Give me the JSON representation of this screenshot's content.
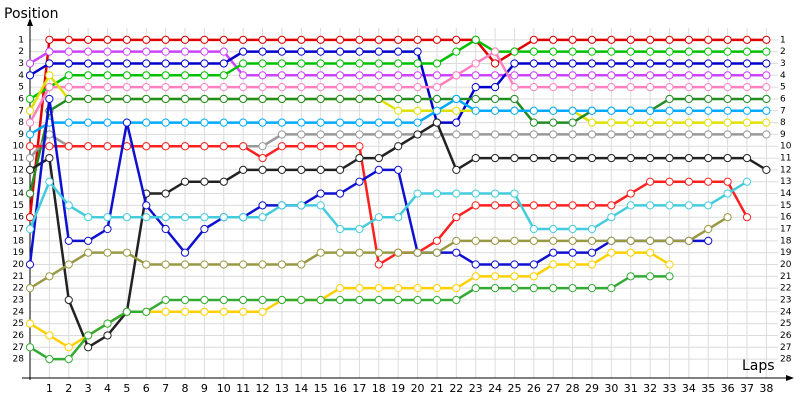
{
  "chart_data": {
    "type": "line",
    "y_label": "Position",
    "x_label": "Laps",
    "x": [
      0,
      1,
      2,
      3,
      4,
      5,
      6,
      7,
      8,
      9,
      10,
      11,
      12,
      13,
      14,
      15,
      16,
      17,
      18,
      19,
      20,
      21,
      22,
      23,
      24,
      25,
      26,
      27,
      28,
      29,
      30,
      31,
      32,
      33,
      34,
      35,
      36,
      37,
      38
    ],
    "xlim": [
      0,
      38.6
    ],
    "xticks": [
      1,
      2,
      3,
      4,
      5,
      6,
      7,
      8,
      9,
      10,
      11,
      12,
      13,
      14,
      15,
      16,
      17,
      18,
      19,
      20,
      21,
      22,
      23,
      24,
      25,
      26,
      27,
      28,
      29,
      30,
      31,
      32,
      33,
      34,
      35,
      36,
      37,
      38
    ],
    "ylim": [
      0,
      28.5
    ],
    "y_inverted": true,
    "yticks": [
      1,
      2,
      3,
      4,
      5,
      6,
      7,
      8,
      9,
      10,
      11,
      12,
      13,
      14,
      15,
      16,
      17,
      18,
      19,
      20,
      21,
      22,
      23,
      24,
      25,
      26,
      27,
      28
    ],
    "grid": true,
    "series": [
      {
        "color": "#e00000",
        "values": [
          16,
          1,
          1,
          1,
          1,
          1,
          1,
          1,
          1,
          1,
          1,
          1,
          1,
          1,
          1,
          1,
          1,
          1,
          1,
          1,
          1,
          1,
          1,
          1,
          3,
          2,
          1,
          1,
          1,
          1,
          1,
          1,
          1,
          1,
          1,
          1,
          1,
          1,
          1
        ]
      },
      {
        "color": "#cc44ff",
        "values": [
          3,
          2,
          2,
          2,
          2,
          2,
          2,
          2,
          2,
          2,
          2,
          4,
          4,
          4,
          4,
          4,
          4,
          4,
          4,
          4,
          4,
          4,
          4,
          4,
          4,
          4,
          4,
          4,
          4,
          4,
          4,
          4,
          4,
          4,
          4,
          4,
          4,
          4,
          4
        ]
      },
      {
        "color": "#0000cc",
        "values": [
          4,
          3,
          3,
          3,
          3,
          3,
          3,
          3,
          3,
          3,
          3,
          2,
          2,
          2,
          2,
          2,
          2,
          2,
          2,
          2,
          2,
          8,
          8,
          5,
          5,
          3,
          3,
          3,
          3,
          3,
          3,
          3,
          3,
          3,
          3,
          3,
          3,
          3,
          3
        ]
      },
      {
        "color": "#00c000",
        "values": [
          6,
          5,
          4,
          4,
          4,
          4,
          4,
          4,
          4,
          4,
          4,
          3,
          3,
          3,
          3,
          3,
          3,
          3,
          3,
          3,
          3,
          3,
          2,
          1,
          2,
          2,
          2,
          2,
          2,
          2,
          2,
          2,
          2,
          2,
          2,
          2,
          2,
          2,
          2
        ]
      },
      {
        "color": "#ff80c0",
        "values": [
          8,
          5,
          5,
          5,
          5,
          5,
          5,
          5,
          5,
          5,
          5,
          5,
          5,
          5,
          5,
          5,
          5,
          5,
          5,
          5,
          5,
          5,
          4,
          3,
          2,
          5,
          5,
          5,
          5,
          5,
          5,
          5,
          5,
          5,
          5,
          5,
          5,
          5,
          5
        ]
      },
      {
        "color": "#e0e000",
        "values": [
          7,
          4,
          6,
          6,
          6,
          6,
          6,
          6,
          6,
          6,
          6,
          6,
          6,
          6,
          6,
          6,
          6,
          6,
          6,
          7,
          7,
          7,
          7,
          7,
          7,
          7,
          7,
          7,
          7,
          8,
          8,
          8,
          8,
          8,
          8,
          8,
          8,
          8,
          8
        ]
      },
      {
        "color": "#228b22",
        "values": [
          14,
          7,
          6,
          6,
          6,
          6,
          6,
          6,
          6,
          6,
          6,
          6,
          6,
          6,
          6,
          6,
          6,
          6,
          6,
          6,
          6,
          6,
          6,
          6,
          6,
          6,
          8,
          8,
          8,
          7,
          7,
          7,
          7,
          6,
          6,
          6,
          6,
          6,
          6
        ]
      },
      {
        "color": "#00aaff",
        "values": [
          9,
          8,
          8,
          8,
          8,
          8,
          8,
          8,
          8,
          8,
          8,
          8,
          8,
          8,
          8,
          8,
          8,
          8,
          8,
          8,
          8,
          7,
          6,
          7,
          7,
          7,
          7,
          7,
          7,
          7,
          7,
          7,
          7,
          7,
          7,
          7,
          7,
          7,
          7
        ]
      },
      {
        "color": "#999999",
        "values": [
          11,
          9,
          10,
          10,
          10,
          10,
          10,
          10,
          10,
          10,
          10,
          10,
          10,
          9,
          9,
          9,
          9,
          9,
          9,
          9,
          9,
          9,
          9,
          9,
          9,
          9,
          9,
          9,
          9,
          9,
          9,
          9,
          9,
          9,
          9,
          9,
          9,
          9,
          9
        ]
      },
      {
        "color": "#ff2020",
        "values": [
          10,
          10,
          10,
          10,
          10,
          10,
          10,
          10,
          10,
          10,
          10,
          10,
          11,
          10,
          10,
          10,
          10,
          10,
          20,
          19,
          19,
          18,
          16,
          15,
          15,
          15,
          15,
          15,
          15,
          15,
          15,
          14,
          13,
          13,
          13,
          13,
          13,
          16,
          null
        ]
      },
      {
        "color": "#222222",
        "values": [
          12,
          11,
          23,
          27,
          26,
          24,
          14,
          14,
          13,
          13,
          13,
          12,
          12,
          12,
          12,
          12,
          12,
          11,
          11,
          10,
          9,
          8,
          12,
          11,
          11,
          11,
          11,
          11,
          11,
          11,
          11,
          11,
          11,
          11,
          11,
          11,
          11,
          11,
          12
        ]
      },
      {
        "color": "#1010d0",
        "values": [
          20,
          6,
          18,
          18,
          17,
          8,
          15,
          17,
          19,
          17,
          16,
          16,
          15,
          15,
          15,
          14,
          14,
          13,
          12,
          12,
          19,
          19,
          19,
          20,
          20,
          20,
          20,
          19,
          19,
          19,
          18,
          18,
          18,
          18,
          18,
          18,
          null,
          null,
          null
        ]
      },
      {
        "color": "#ffd000",
        "values": [
          25,
          26,
          27,
          26,
          25,
          24,
          24,
          24,
          24,
          24,
          24,
          24,
          24,
          23,
          23,
          23,
          22,
          22,
          22,
          22,
          22,
          22,
          22,
          21,
          21,
          21,
          21,
          20,
          20,
          20,
          19,
          19,
          19,
          20,
          null,
          null,
          null,
          null,
          null
        ]
      },
      {
        "color": "#33aa33",
        "values": [
          27,
          28,
          28,
          26,
          25,
          24,
          24,
          23,
          23,
          23,
          23,
          23,
          23,
          23,
          23,
          23,
          23,
          23,
          23,
          23,
          23,
          23,
          23,
          22,
          22,
          22,
          22,
          22,
          22,
          22,
          22,
          21,
          21,
          21,
          null,
          null,
          null,
          null,
          null
        ]
      },
      {
        "color": "#999944",
        "values": [
          22,
          21,
          20,
          19,
          19,
          19,
          20,
          20,
          20,
          20,
          20,
          20,
          20,
          20,
          20,
          19,
          19,
          19,
          19,
          19,
          19,
          19,
          18,
          18,
          18,
          18,
          18,
          18,
          18,
          18,
          18,
          18,
          18,
          18,
          18,
          17,
          16,
          null,
          null
        ]
      },
      {
        "color": "#44ccdd",
        "values": [
          17,
          13,
          15,
          16,
          16,
          16,
          16,
          16,
          16,
          16,
          16,
          16,
          16,
          15,
          15,
          15,
          17,
          17,
          16,
          16,
          14,
          14,
          14,
          14,
          14,
          14,
          17,
          17,
          17,
          17,
          16,
          15,
          15,
          15,
          15,
          15,
          14,
          13,
          null
        ]
      }
    ]
  }
}
